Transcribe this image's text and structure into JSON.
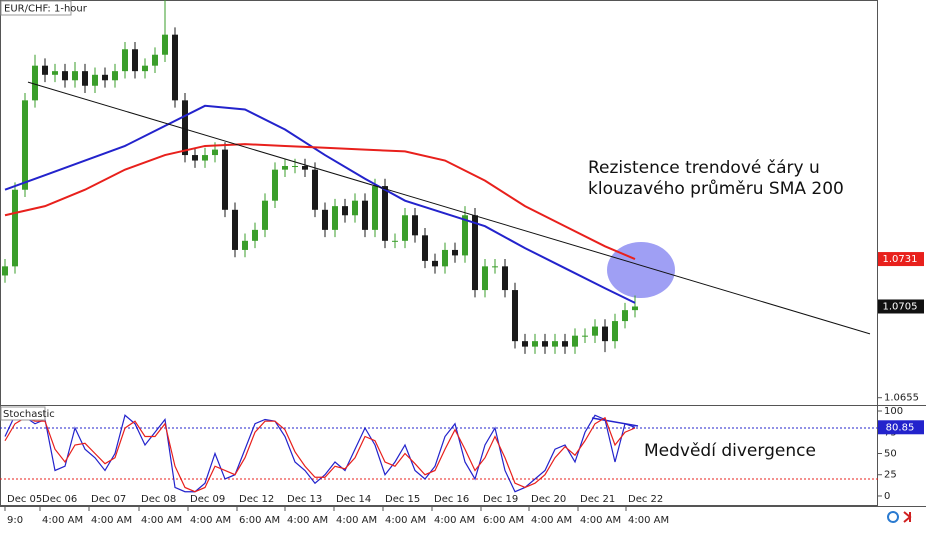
{
  "chart_data": [
    {
      "type": "candlestick",
      "title": "EUR/CHF: 1-hour",
      "ohlc": [
        [
          1.0722,
          1.0731,
          1.0718,
          1.0727
        ],
        [
          1.0727,
          1.0773,
          1.0723,
          1.0769
        ],
        [
          1.0769,
          1.0822,
          1.0765,
          1.0818
        ],
        [
          1.0818,
          1.0843,
          1.0814,
          1.0837
        ],
        [
          1.0837,
          1.0841,
          1.0828,
          1.0832
        ],
        [
          1.0832,
          1.0838,
          1.0828,
          1.0834
        ],
        [
          1.0834,
          1.0838,
          1.0825,
          1.0829
        ],
        [
          1.0829,
          1.0839,
          1.0825,
          1.0834
        ],
        [
          1.0834,
          1.0838,
          1.0822,
          1.0826
        ],
        [
          1.0826,
          1.0836,
          1.0822,
          1.0832
        ],
        [
          1.0832,
          1.0836,
          1.0825,
          1.0829
        ],
        [
          1.0829,
          1.0838,
          1.0825,
          1.0834
        ],
        [
          1.0834,
          1.085,
          1.083,
          1.0846
        ],
        [
          1.0846,
          1.085,
          1.083,
          1.0834
        ],
        [
          1.0834,
          1.0841,
          1.083,
          1.0837
        ],
        [
          1.0837,
          1.0847,
          1.0833,
          1.0843
        ],
        [
          1.0843,
          1.0873,
          1.0839,
          1.0854
        ],
        [
          1.0854,
          1.0858,
          1.0814,
          1.0818
        ],
        [
          1.0818,
          1.0822,
          1.0784,
          1.0788
        ],
        [
          1.0788,
          1.0792,
          1.0781,
          1.0785
        ],
        [
          1.0785,
          1.0792,
          1.0781,
          1.0788
        ],
        [
          1.0788,
          1.0795,
          1.0784,
          1.0791
        ],
        [
          1.0791,
          1.0795,
          1.0754,
          1.0758
        ],
        [
          1.0758,
          1.0762,
          1.0732,
          1.0736
        ],
        [
          1.0736,
          1.0745,
          1.0732,
          1.0741
        ],
        [
          1.0741,
          1.0751,
          1.0737,
          1.0747
        ],
        [
          1.0747,
          1.0767,
          1.0743,
          1.0763
        ],
        [
          1.0763,
          1.0784,
          1.0759,
          1.078
        ],
        [
          1.078,
          1.0786,
          1.0776,
          1.0782
        ],
        [
          1.0782,
          1.0786,
          1.0778,
          1.0782
        ],
        [
          1.0782,
          1.0786,
          1.0776,
          1.078
        ],
        [
          1.078,
          1.0784,
          1.0754,
          1.0758
        ],
        [
          1.0758,
          1.0762,
          1.0743,
          1.0747
        ],
        [
          1.0747,
          1.0764,
          1.0743,
          1.076
        ],
        [
          1.076,
          1.0764,
          1.0751,
          1.0755
        ],
        [
          1.0755,
          1.0767,
          1.0751,
          1.0763
        ],
        [
          1.0763,
          1.0767,
          1.0743,
          1.0747
        ],
        [
          1.0747,
          1.0775,
          1.0743,
          1.0771
        ],
        [
          1.0771,
          1.0775,
          1.0737,
          1.0741
        ],
        [
          1.0741,
          1.0745,
          1.0737,
          1.0741
        ],
        [
          1.0741,
          1.0759,
          1.0737,
          1.0755
        ],
        [
          1.0755,
          1.0759,
          1.074,
          1.0744
        ],
        [
          1.0744,
          1.0748,
          1.0726,
          1.073
        ],
        [
          1.073,
          1.0734,
          1.0723,
          1.0727
        ],
        [
          1.0727,
          1.074,
          1.0723,
          1.0736
        ],
        [
          1.0736,
          1.074,
          1.0729,
          1.0733
        ],
        [
          1.0733,
          1.076,
          1.0729,
          1.0755
        ],
        [
          1.0755,
          1.0759,
          1.071,
          1.0714
        ],
        [
          1.0714,
          1.0731,
          1.071,
          1.0727
        ],
        [
          1.0727,
          1.0731,
          1.0723,
          1.0727
        ],
        [
          1.0727,
          1.0731,
          1.071,
          1.0714
        ],
        [
          1.0714,
          1.0718,
          1.0682,
          1.0686
        ],
        [
          1.0686,
          1.069,
          1.0679,
          1.0683
        ],
        [
          1.0683,
          1.069,
          1.0679,
          1.0686
        ],
        [
          1.0686,
          1.069,
          1.0679,
          1.0683
        ],
        [
          1.0683,
          1.069,
          1.0679,
          1.0686
        ],
        [
          1.0686,
          1.069,
          1.0679,
          1.0683
        ],
        [
          1.0683,
          1.0693,
          1.0679,
          1.0689
        ],
        [
          1.0689,
          1.0693,
          1.0685,
          1.0689
        ],
        [
          1.0689,
          1.0698,
          1.0685,
          1.0694
        ],
        [
          1.0694,
          1.0698,
          1.068,
          1.0686
        ],
        [
          1.0686,
          1.0701,
          1.0682,
          1.0697
        ],
        [
          1.0697,
          1.0707,
          1.0693,
          1.0703
        ],
        [
          1.0703,
          1.0711,
          1.0699,
          1.0705
        ]
      ],
      "up_color": "#3a9e2a",
      "down_color": "#1a1a1a",
      "series": [
        {
          "color": "#2323cc",
          "x": [
            0,
            4,
            8,
            12,
            16,
            20,
            24,
            28,
            32,
            36,
            40,
            44,
            48,
            52,
            56,
            60,
            63
          ],
          "values": [
            1.0769,
            1.0777,
            1.0785,
            1.0793,
            1.0804,
            1.0815,
            1.0813,
            1.0802,
            1.0788,
            1.0775,
            1.0763,
            1.0756,
            1.0749,
            1.0737,
            1.0726,
            1.0715,
            1.0707
          ]
        },
        {
          "color": "#e8201c",
          "x": [
            0,
            4,
            8,
            12,
            16,
            20,
            24,
            28,
            32,
            36,
            40,
            44,
            48,
            52,
            56,
            60,
            63
          ],
          "values": [
            1.0755,
            1.076,
            1.0769,
            1.078,
            1.0788,
            1.0793,
            1.0794,
            1.0793,
            1.0792,
            1.0791,
            1.079,
            1.0785,
            1.0774,
            1.076,
            1.0749,
            1.0738,
            1.0731
          ]
        }
      ],
      "trendline": {
        "x": [
          2.3,
          86.5
        ],
        "values": [
          1.0828,
          1.069
        ],
        "color": "#111111"
      },
      "xlim": [
        -0.5,
        87.3
      ],
      "xticks": [
        {
          "value": 0,
          "label": "Dec 05"
        },
        {
          "value": 3.5,
          "label": "Dec 06"
        },
        {
          "value": 8.4,
          "label": "Dec 07"
        },
        {
          "value": 13.4,
          "label": "Dec 08"
        },
        {
          "value": 18.3,
          "label": "Dec 09"
        },
        {
          "value": 23.2,
          "label": "Dec 12"
        },
        {
          "value": 28,
          "label": "Dec 13"
        },
        {
          "value": 32.9,
          "label": "Dec 14"
        },
        {
          "value": 37.8,
          "label": "Dec 15"
        },
        {
          "value": 42.7,
          "label": "Dec 16"
        },
        {
          "value": 47.6,
          "label": "Dec 19"
        },
        {
          "value": 52.4,
          "label": "Dec 20"
        },
        {
          "value": 57.3,
          "label": "Dec 21"
        },
        {
          "value": 62.1,
          "label": "Dec 22"
        }
      ],
      "xtick_times": [
        "9:0",
        "4:00 AM",
        "4:00 AM",
        "4:00 AM",
        "4:00 AM",
        "6:00 AM",
        "4:00 AM",
        "4:00 AM",
        "4:00 AM",
        "4:00 AM",
        "6:00 AM",
        "4:00 AM",
        "4:00 AM",
        "4:00 AM"
      ],
      "ylim": [
        1.0651,
        1.0873
      ],
      "yticks": [
        1.0655
      ],
      "annotation": [
        "Rezistence trendové čáry u",
        "klouzavého průměru SMA 200"
      ]
    },
    {
      "type": "line",
      "title": "Stochastic",
      "series": [
        {
          "color": "#2323cc",
          "values": [
            70,
            95,
            93,
            85,
            90,
            30,
            35,
            80,
            55,
            45,
            30,
            50,
            95,
            85,
            60,
            75,
            90,
            10,
            5,
            5,
            15,
            50,
            20,
            25,
            55,
            85,
            90,
            88,
            70,
            40,
            30,
            15,
            25,
            40,
            30,
            55,
            80,
            60,
            25,
            40,
            60,
            30,
            20,
            35,
            70,
            85,
            40,
            20,
            60,
            80,
            30,
            5,
            10,
            20,
            30,
            55,
            60,
            40,
            75,
            95,
            90,
            40,
            85,
            80.85
          ]
        },
        {
          "color": "#e8201c",
          "values": [
            65,
            85,
            92,
            88,
            88,
            55,
            40,
            60,
            62,
            50,
            38,
            45,
            80,
            88,
            70,
            70,
            85,
            35,
            10,
            5,
            10,
            35,
            30,
            25,
            45,
            75,
            88,
            88,
            78,
            52,
            35,
            22,
            22,
            35,
            32,
            45,
            70,
            65,
            40,
            35,
            50,
            38,
            25,
            30,
            55,
            78,
            55,
            30,
            45,
            70,
            45,
            15,
            10,
            15,
            25,
            45,
            58,
            48,
            65,
            85,
            92,
            60,
            75,
            80
          ]
        }
      ],
      "levels": [
        {
          "value": 80,
          "color": "#2323cc"
        },
        {
          "value": 20,
          "color": "#e8201c"
        }
      ],
      "xlim": [
        -0.5,
        87.3
      ],
      "ylim": [
        -11.8,
        105.9
      ],
      "yticks": [
        0,
        25,
        50,
        75,
        100
      ],
      "annotation": [
        "Medvědí divergence"
      ]
    }
  ]
}
